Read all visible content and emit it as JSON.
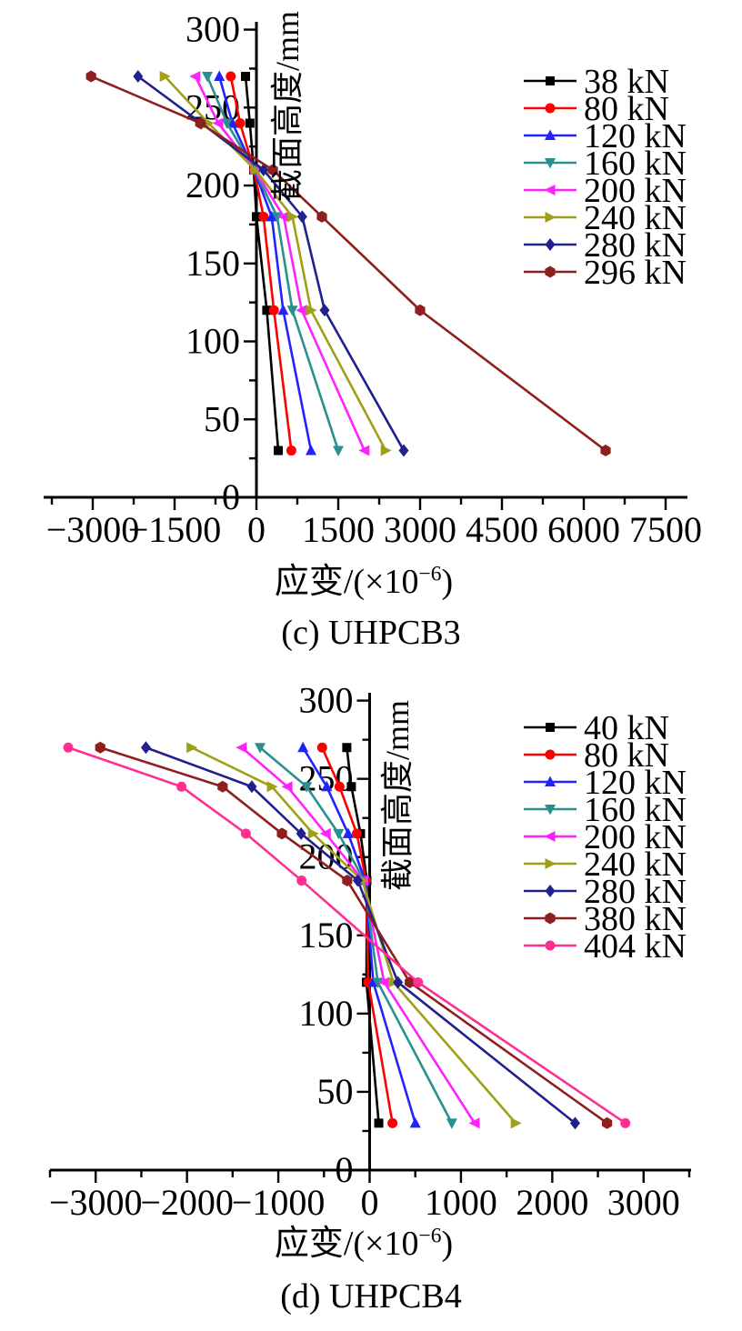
{
  "chart_data": [
    {
      "type": "line",
      "title": "(c) UHPCB3",
      "xlabel": "应变/(×10⁻⁶)",
      "xlabel_parts": {
        "prefix": "应变/(×10",
        "sup": "−6",
        "suffix": ")"
      },
      "ylabel": "截面高度/mm",
      "xlim": [
        -3900,
        7900
      ],
      "ylim": [
        0,
        305
      ],
      "x_minor_step": 750,
      "y_minor_step": 25,
      "x_major_ticks": [
        {
          "value": -3000,
          "label": "−3000"
        },
        {
          "value": -1500,
          "label": "−1500"
        },
        {
          "value": 0,
          "label": "0"
        },
        {
          "value": 1500,
          "label": "1500"
        },
        {
          "value": 3000,
          "label": "3000"
        },
        {
          "value": 4500,
          "label": "4500"
        },
        {
          "value": 6000,
          "label": "6000"
        },
        {
          "value": 7500,
          "label": "7500"
        }
      ],
      "y_major_ticks": [
        {
          "value": 0,
          "label": "0"
        },
        {
          "value": 50,
          "label": "50"
        },
        {
          "value": 100,
          "label": "100"
        },
        {
          "value": 150,
          "label": "150"
        },
        {
          "value": 200,
          "label": "200"
        },
        {
          "value": 250,
          "label": "250"
        },
        {
          "value": 300,
          "label": "300"
        }
      ],
      "legend_position": "top-right",
      "grid": false,
      "series": [
        {
          "name": "38 kN",
          "color": "#000000",
          "marker": "square",
          "points": [
            [
              -200,
              270
            ],
            [
              -120,
              240
            ],
            [
              -50,
              210
            ],
            [
              0,
              180
            ],
            [
              190,
              120
            ],
            [
              400,
              30
            ]
          ]
        },
        {
          "name": "80 kN",
          "color": "#fe0000",
          "marker": "circle",
          "points": [
            [
              -470,
              270
            ],
            [
              -300,
              240
            ],
            [
              -45,
              210
            ],
            [
              130,
              180
            ],
            [
              320,
              120
            ],
            [
              640,
              30
            ]
          ]
        },
        {
          "name": "120 kN",
          "color": "#2222ff",
          "marker": "triangle-up",
          "points": [
            [
              -680,
              270
            ],
            [
              -440,
              240
            ],
            [
              -40,
              210
            ],
            [
              280,
              180
            ],
            [
              490,
              120
            ],
            [
              1000,
              30
            ]
          ]
        },
        {
          "name": "160 kN",
          "color": "#2a8f8f",
          "marker": "triangle-down",
          "points": [
            [
              -900,
              270
            ],
            [
              -540,
              240
            ],
            [
              -35,
              210
            ],
            [
              380,
              180
            ],
            [
              660,
              120
            ],
            [
              1500,
              30
            ]
          ]
        },
        {
          "name": "200 kN",
          "color": "#ff22ff",
          "marker": "triangle-left",
          "points": [
            [
              -1120,
              270
            ],
            [
              -700,
              240
            ],
            [
              -30,
              210
            ],
            [
              500,
              180
            ],
            [
              830,
              120
            ],
            [
              1980,
              30
            ]
          ]
        },
        {
          "name": "240 kN",
          "color": "#a0a018",
          "marker": "triangle-right",
          "points": [
            [
              -1680,
              270
            ],
            [
              -880,
              240
            ],
            [
              -20,
              210
            ],
            [
              660,
              180
            ],
            [
              1000,
              120
            ],
            [
              2370,
              30
            ]
          ]
        },
        {
          "name": "280 kN",
          "color": "#20208f",
          "marker": "diamond",
          "points": [
            [
              -2170,
              270
            ],
            [
              -1010,
              240
            ],
            [
              130,
              210
            ],
            [
              840,
              180
            ],
            [
              1250,
              120
            ],
            [
              2700,
              30
            ]
          ]
        },
        {
          "name": "296 kN",
          "color": "#8f1f1f",
          "marker": "hexagon",
          "points": [
            [
              -3030,
              270
            ],
            [
              -1030,
              240
            ],
            [
              300,
              210
            ],
            [
              1200,
              180
            ],
            [
              3000,
              120
            ],
            [
              6400,
              30
            ]
          ]
        }
      ]
    },
    {
      "type": "line",
      "title": "(d) UHPCB4",
      "xlabel": "应变/(×10⁻⁶)",
      "xlabel_parts": {
        "prefix": "应变/(×10",
        "sup": "−6",
        "suffix": ")"
      },
      "ylabel": "截面高度/mm",
      "xlim": [
        -3500,
        3520
      ],
      "ylim": [
        0,
        305
      ],
      "x_minor_step": 500,
      "y_minor_step": 25,
      "x_major_ticks": [
        {
          "value": -3000,
          "label": "−3000"
        },
        {
          "value": -2000,
          "label": "−2000"
        },
        {
          "value": -1000,
          "label": "−1000"
        },
        {
          "value": 0,
          "label": "0"
        },
        {
          "value": 1000,
          "label": "1000"
        },
        {
          "value": 2000,
          "label": "2000"
        },
        {
          "value": 3000,
          "label": "3000"
        }
      ],
      "y_major_ticks": [
        {
          "value": 0,
          "label": "0"
        },
        {
          "value": 50,
          "label": "50"
        },
        {
          "value": 100,
          "label": "100"
        },
        {
          "value": 150,
          "label": "150"
        },
        {
          "value": 200,
          "label": "200"
        },
        {
          "value": 250,
          "label": "250"
        },
        {
          "value": 300,
          "label": "300"
        }
      ],
      "legend_position": "top-right",
      "grid": false,
      "series": [
        {
          "name": "40 kN",
          "color": "#000000",
          "marker": "square",
          "points": [
            [
              -250,
              270
            ],
            [
              -200,
              245
            ],
            [
              -100,
              215
            ],
            [
              -30,
              185
            ],
            [
              -35,
              120
            ],
            [
              100,
              30
            ]
          ]
        },
        {
          "name": "80 kN",
          "color": "#fe0000",
          "marker": "circle",
          "points": [
            [
              -520,
              270
            ],
            [
              -330,
              245
            ],
            [
              -140,
              215
            ],
            [
              -40,
              185
            ],
            [
              -15,
              120
            ],
            [
              250,
              30
            ]
          ]
        },
        {
          "name": "120 kN",
          "color": "#2222ff",
          "marker": "triangle-up",
          "points": [
            [
              -730,
              270
            ],
            [
              -470,
              245
            ],
            [
              -235,
              215
            ],
            [
              -50,
              185
            ],
            [
              40,
              120
            ],
            [
              500,
              30
            ]
          ]
        },
        {
          "name": "160 kN",
          "color": "#2a8f8f",
          "marker": "triangle-down",
          "points": [
            [
              -1200,
              270
            ],
            [
              -690,
              245
            ],
            [
              -340,
              215
            ],
            [
              -60,
              185
            ],
            [
              90,
              120
            ],
            [
              900,
              30
            ]
          ]
        },
        {
          "name": "200 kN",
          "color": "#ff22ff",
          "marker": "triangle-left",
          "points": [
            [
              -1400,
              270
            ],
            [
              -900,
              245
            ],
            [
              -480,
              215
            ],
            [
              -70,
              185
            ],
            [
              160,
              120
            ],
            [
              1150,
              30
            ]
          ]
        },
        {
          "name": "240 kN",
          "color": "#a0a018",
          "marker": "triangle-right",
          "points": [
            [
              -1950,
              270
            ],
            [
              -1070,
              245
            ],
            [
              -620,
              215
            ],
            [
              -80,
              185
            ],
            [
              260,
              120
            ],
            [
              1600,
              30
            ]
          ]
        },
        {
          "name": "280 kN",
          "color": "#20208f",
          "marker": "diamond",
          "points": [
            [
              -2450,
              270
            ],
            [
              -1290,
              245
            ],
            [
              -750,
              215
            ],
            [
              -130,
              185
            ],
            [
              310,
              120
            ],
            [
              2250,
              30
            ]
          ]
        },
        {
          "name": "380 kN",
          "color": "#8f1f1f",
          "marker": "hexagon",
          "points": [
            [
              -2950,
              270
            ],
            [
              -1610,
              245
            ],
            [
              -960,
              215
            ],
            [
              -245,
              185
            ],
            [
              440,
              120
            ],
            [
              2600,
              30
            ]
          ]
        },
        {
          "name": "404 kN",
          "color": "#ff2f92",
          "marker": "circle",
          "points": [
            [
              -3300,
              270
            ],
            [
              -2060,
              245
            ],
            [
              -1355,
              215
            ],
            [
              -745,
              185
            ],
            [
              530,
              120
            ],
            [
              2800,
              30
            ]
          ]
        }
      ]
    }
  ]
}
